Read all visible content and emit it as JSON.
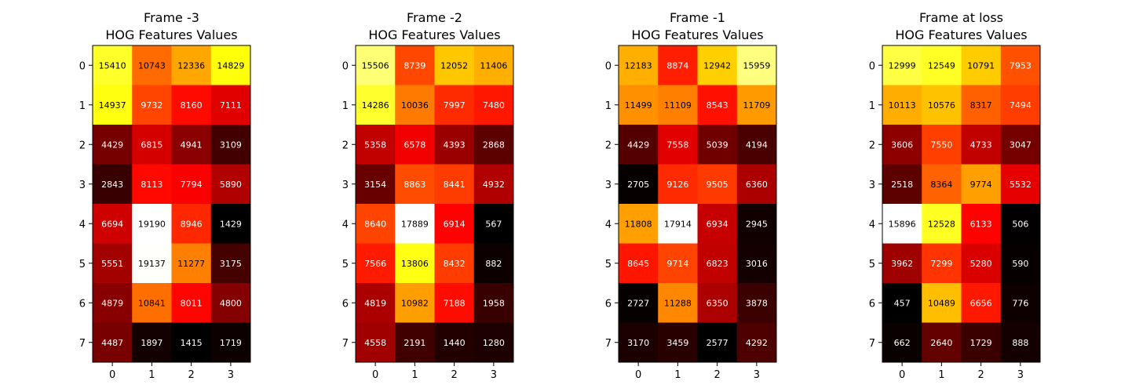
{
  "chart_data": [
    {
      "type": "heatmap",
      "title_line1": "Frame -3",
      "title_line2": "HOG Features Values",
      "x_ticks": [
        "0",
        "1",
        "2",
        "3"
      ],
      "y_ticks": [
        "0",
        "1",
        "2",
        "3",
        "4",
        "5",
        "6",
        "7"
      ],
      "colormap": "hot",
      "values": [
        [
          15410,
          10743,
          12336,
          14829
        ],
        [
          14937,
          9732,
          8160,
          7111
        ],
        [
          4429,
          6815,
          4941,
          3109
        ],
        [
          2843,
          8113,
          7794,
          5890
        ],
        [
          6694,
          19190,
          8946,
          1429
        ],
        [
          5551,
          19137,
          11277,
          3175
        ],
        [
          4879,
          10841,
          8011,
          4800
        ],
        [
          4487,
          1897,
          1415,
          1719
        ]
      ]
    },
    {
      "type": "heatmap",
      "title_line1": "Frame -2",
      "title_line2": "HOG Features Values",
      "x_ticks": [
        "0",
        "1",
        "2",
        "3"
      ],
      "y_ticks": [
        "0",
        "1",
        "2",
        "3",
        "4",
        "5",
        "6",
        "7"
      ],
      "colormap": "hot",
      "values": [
        [
          15506,
          8739,
          12052,
          11406
        ],
        [
          14286,
          10036,
          7997,
          7480
        ],
        [
          5358,
          6578,
          4393,
          2868
        ],
        [
          3154,
          8863,
          8441,
          4932
        ],
        [
          8640,
          17889,
          6914,
          567
        ],
        [
          7566,
          13806,
          8432,
          882
        ],
        [
          4819,
          10982,
          7188,
          1958
        ],
        [
          4558,
          2191,
          1440,
          1280
        ]
      ]
    },
    {
      "type": "heatmap",
      "title_line1": "Frame -1",
      "title_line2": "HOG Features Values",
      "x_ticks": [
        "0",
        "1",
        "2",
        "3"
      ],
      "y_ticks": [
        "0",
        "1",
        "2",
        "3",
        "4",
        "5",
        "6",
        "7"
      ],
      "colormap": "hot",
      "values": [
        [
          12183,
          8874,
          12942,
          15959
        ],
        [
          11499,
          11109,
          8543,
          11709
        ],
        [
          4429,
          7558,
          5039,
          4194
        ],
        [
          2705,
          9126,
          9505,
          6360
        ],
        [
          11808,
          17914,
          6934,
          2945
        ],
        [
          8645,
          9714,
          6823,
          3016
        ],
        [
          2727,
          11288,
          6350,
          3878
        ],
        [
          3170,
          3459,
          2577,
          4292
        ]
      ]
    },
    {
      "type": "heatmap",
      "title_line1": "Frame at loss",
      "title_line2": "HOG Features Values",
      "x_ticks": [
        "0",
        "1",
        "2",
        "3"
      ],
      "y_ticks": [
        "0",
        "1",
        "2",
        "3",
        "4",
        "5",
        "6",
        "7"
      ],
      "colormap": "hot",
      "values": [
        [
          12999,
          12549,
          10791,
          7953
        ],
        [
          10113,
          10576,
          8317,
          7494
        ],
        [
          3606,
          7550,
          4733,
          3047
        ],
        [
          2518,
          8364,
          9774,
          5532
        ],
        [
          15896,
          12528,
          6133,
          506
        ],
        [
          3962,
          7299,
          5280,
          590
        ],
        [
          457,
          10489,
          6656,
          776
        ],
        [
          662,
          2640,
          1729,
          888
        ]
      ]
    }
  ]
}
